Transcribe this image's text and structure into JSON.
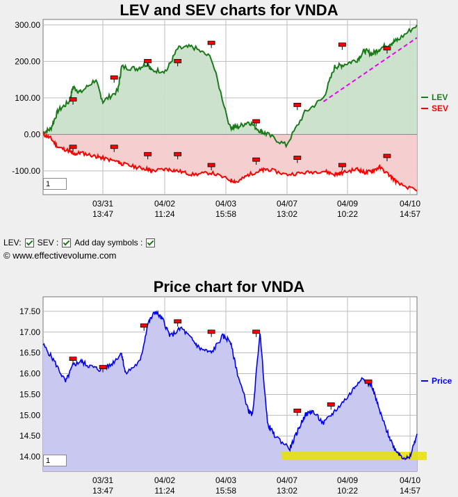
{
  "charts": {
    "lev_sev": {
      "title": "LEV and SEV charts for VNDA",
      "zoom_value": "1"
    },
    "price": {
      "title": "Price chart for VNDA",
      "zoom_value": "1"
    }
  },
  "controls": {
    "lev_label": "LEV:",
    "sev_label": "SEV :",
    "day_symbols_label": "Add day symbols :"
  },
  "copyright": "© www.effectivevolume.com",
  "colors": {
    "lev": "#1a7a1a",
    "lev_fill": "#c9e0c9",
    "sev": "#ff0000",
    "sev_fill": "#f4cccc",
    "price": "#0000ee",
    "price_fill": "#c8c8f0",
    "trend": "#ee00ee",
    "highlight": "#e8e000",
    "marker": "#ff0000"
  },
  "chart_data": [
    {
      "type": "line",
      "title": "LEV and SEV charts for VNDA",
      "ylim": [
        -165,
        315
      ],
      "yticks": [
        300,
        200,
        100,
        0,
        -100
      ],
      "ytick_labels": [
        "300.00",
        "200.00",
        "100.00",
        "0.00",
        "-100.00"
      ],
      "xtick_labels": [
        [
          "03/31",
          "13:47"
        ],
        [
          "04/02",
          "11:24"
        ],
        [
          "04/03",
          "15:58"
        ],
        [
          "04/07",
          "13:02"
        ],
        [
          "04/09",
          "10:22"
        ],
        [
          "04/10",
          "14:57"
        ]
      ],
      "x": [
        0,
        2,
        4,
        7,
        8,
        10,
        14,
        16,
        20,
        21,
        25,
        28,
        29,
        33,
        36,
        40,
        45,
        50,
        52,
        55,
        58,
        60,
        65,
        70,
        75,
        78,
        80,
        84,
        86,
        88,
        90,
        93,
        95,
        100
      ],
      "series": [
        {
          "name": "LEV",
          "values": [
            5,
            15,
            65,
            90,
            130,
            115,
            150,
            90,
            120,
            185,
            180,
            195,
            175,
            175,
            235,
            240,
            210,
            20,
            20,
            35,
            10,
            0,
            -30,
            60,
            100,
            185,
            190,
            205,
            230,
            220,
            235,
            250,
            260,
            300
          ]
        },
        {
          "name": "SEV",
          "values": [
            0,
            -10,
            -35,
            -45,
            -55,
            -50,
            -60,
            -65,
            -75,
            -80,
            -90,
            -95,
            -100,
            -95,
            -100,
            -110,
            -105,
            -125,
            -130,
            -110,
            -100,
            -95,
            -110,
            -105,
            -100,
            -110,
            -105,
            -95,
            -105,
            -100,
            -90,
            -115,
            -135,
            -155
          ]
        }
      ],
      "trend_line": {
        "x": [
          75,
          100
        ],
        "y": [
          90,
          265
        ]
      },
      "day_markers": {
        "lev": [
          [
            8,
            95
          ],
          [
            19,
            155
          ],
          [
            28,
            200
          ],
          [
            36,
            200
          ],
          [
            45,
            250
          ],
          [
            57,
            35
          ],
          [
            68,
            80
          ],
          [
            80,
            245
          ],
          [
            92,
            235
          ]
        ],
        "sev": [
          [
            8,
            -35
          ],
          [
            19,
            -35
          ],
          [
            28,
            -55
          ],
          [
            36,
            -55
          ],
          [
            45,
            -85
          ],
          [
            57,
            -70
          ],
          [
            68,
            -65
          ],
          [
            80,
            -85
          ],
          [
            92,
            -60
          ]
        ]
      },
      "legend": [
        "LEV",
        "SEV"
      ],
      "legend_position": "right"
    },
    {
      "type": "area",
      "title": "Price chart for VNDA",
      "ylim": [
        13.65,
        17.85
      ],
      "yticks": [
        17.5,
        17.0,
        16.5,
        16.0,
        15.5,
        15.0,
        14.5,
        14.0
      ],
      "ytick_labels": [
        "17.50",
        "17.00",
        "16.50",
        "16.00",
        "15.50",
        "15.00",
        "14.50",
        "14.00"
      ],
      "xtick_labels": [
        [
          "03/31",
          "13:47"
        ],
        [
          "04/02",
          "11:24"
        ],
        [
          "04/03",
          "15:58"
        ],
        [
          "04/07",
          "13:02"
        ],
        [
          "04/09",
          "10:22"
        ],
        [
          "04/10",
          "14:57"
        ]
      ],
      "x": [
        0,
        3,
        6,
        8,
        10,
        12,
        15,
        18,
        21,
        22,
        26,
        28,
        30,
        32,
        34,
        37,
        40,
        42,
        45,
        48,
        50,
        52,
        55,
        56,
        58,
        60,
        62,
        66,
        68,
        70,
        72,
        75,
        78,
        82,
        85,
        88,
        90,
        92,
        94,
        96,
        98,
        100
      ],
      "series": [
        {
          "name": "Price",
          "values": [
            16.7,
            16.3,
            15.8,
            16.2,
            16.3,
            16.2,
            16.1,
            16.2,
            16.5,
            16.0,
            16.3,
            17.2,
            17.5,
            17.3,
            16.9,
            17.1,
            16.8,
            16.6,
            16.5,
            16.9,
            16.8,
            16.0,
            15.1,
            15.0,
            17.0,
            14.8,
            14.5,
            14.2,
            14.6,
            15.0,
            15.1,
            14.8,
            15.1,
            15.5,
            15.9,
            15.7,
            15.1,
            14.6,
            14.2,
            14.0,
            13.95,
            14.55
          ]
        }
      ],
      "day_markers": [
        [
          8,
          16.35
        ],
        [
          16,
          16.15
        ],
        [
          27,
          17.15
        ],
        [
          36,
          17.25
        ],
        [
          45,
          17.0
        ],
        [
          57,
          17.0
        ],
        [
          68,
          15.1
        ],
        [
          77,
          15.25
        ],
        [
          87,
          15.8
        ]
      ],
      "highlight_band": {
        "x": [
          60,
          100
        ],
        "y": [
          13.92,
          14.12
        ]
      },
      "legend": [
        "Price"
      ],
      "legend_position": "right"
    }
  ]
}
